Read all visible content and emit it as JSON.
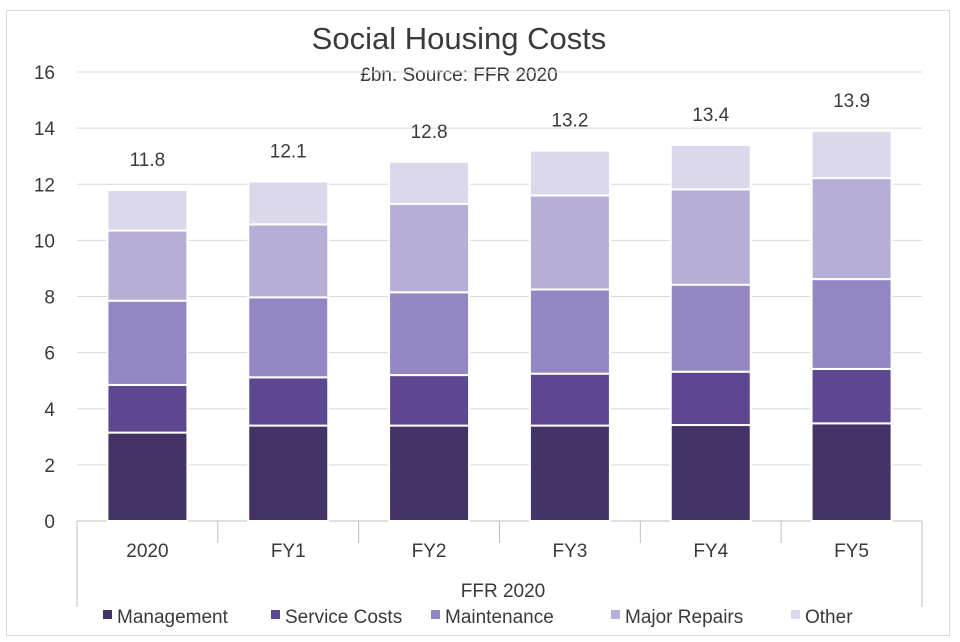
{
  "chart_data": {
    "type": "bar",
    "stacked": true,
    "title": "Social Housing Costs",
    "subtitle": "£bn. Source: FFR 2020",
    "xlabel": "FFR 2020",
    "ylabel": "",
    "ylim": [
      0,
      16
    ],
    "yticks": [
      0,
      2,
      4,
      6,
      8,
      10,
      12,
      14,
      16
    ],
    "grid": true,
    "legend_position": "bottom",
    "categories": [
      "2020",
      "FY1",
      "FY2",
      "FY3",
      "FY4",
      "FY5"
    ],
    "totals": [
      "11.8",
      "12.1",
      "12.8",
      "13.2",
      "13.4",
      "13.9"
    ],
    "series": [
      {
        "name": "Management",
        "color": "#433366",
        "values": [
          3.15,
          3.4,
          3.4,
          3.4,
          3.42,
          3.48
        ]
      },
      {
        "name": "Service Costs",
        "color": "#5d4790",
        "values": [
          1.7,
          1.72,
          1.8,
          1.85,
          1.9,
          1.94
        ]
      },
      {
        "name": "Maintenance",
        "color": "#9485c3",
        "values": [
          3.0,
          2.85,
          2.95,
          3.0,
          3.1,
          3.2
        ]
      },
      {
        "name": "Major Repairs",
        "color": "#b7aed7",
        "values": [
          2.5,
          2.6,
          3.15,
          3.35,
          3.4,
          3.6
        ]
      },
      {
        "name": "Other",
        "color": "#dcd8ec",
        "values": [
          1.45,
          1.53,
          1.5,
          1.6,
          1.58,
          1.68
        ]
      }
    ]
  }
}
